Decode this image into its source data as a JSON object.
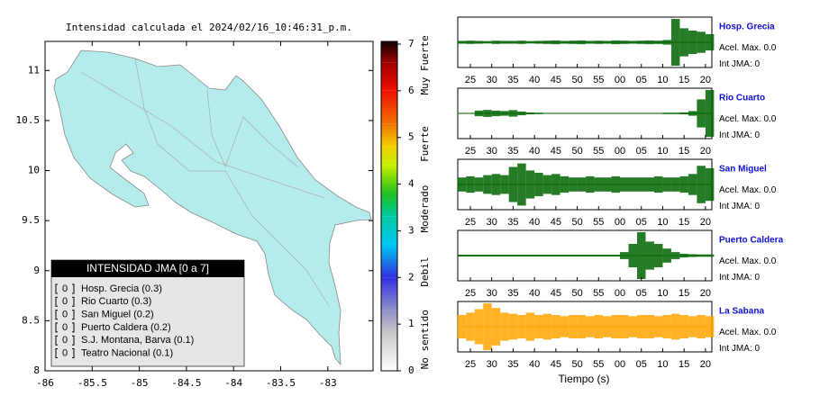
{
  "chart_data": [
    {
      "type": "map",
      "title": "Intensidad calculada el 2024/02/16_10:46:31_p.m.",
      "xlim": [
        -86,
        -82.52
      ],
      "ylim": [
        8,
        11.29
      ],
      "xticks": [
        -86,
        -85.5,
        -85,
        -84.5,
        -84,
        -83.5,
        -83
      ],
      "yticks": [
        8,
        8.5,
        9,
        9.5,
        10,
        10.5,
        11
      ],
      "land_color": "#b4ecec",
      "colorbar": {
        "lim": [
          0,
          7
        ],
        "ticks": [
          0,
          1,
          2,
          3,
          4,
          5,
          6,
          7
        ],
        "stops": [
          {
            "value": 0,
            "color": "#ffffff"
          },
          {
            "value": 0.8,
            "color": "#c8c8c8"
          },
          {
            "value": 1.3,
            "color": "#9090c8"
          },
          {
            "value": 2,
            "color": "#3030e0"
          },
          {
            "value": 2.7,
            "color": "#00c8f0"
          },
          {
            "value": 3.3,
            "color": "#00c8a0"
          },
          {
            "value": 3.8,
            "color": "#20c020"
          },
          {
            "value": 4.4,
            "color": "#c8f000"
          },
          {
            "value": 4.8,
            "color": "#f0d000"
          },
          {
            "value": 5.3,
            "color": "#f07000"
          },
          {
            "value": 6,
            "color": "#f01000"
          },
          {
            "value": 6.6,
            "color": "#a00000"
          },
          {
            "value": 7,
            "color": "#200000"
          }
        ],
        "labels": [
          {
            "value": 6.55,
            "label": "Muy Fuerte"
          },
          {
            "value": 4.86,
            "label": "Fuerte"
          },
          {
            "value": 3.47,
            "label": "Moderado"
          },
          {
            "value": 2.12,
            "label": "Debil"
          },
          {
            "value": 0.67,
            "label": "No sentido"
          }
        ]
      },
      "legend": {
        "title": "INTENSIDAD JMA [0 a 7]",
        "items": [
          {
            "intensity": 0,
            "name": "Hosp. Grecia (0.3)"
          },
          {
            "intensity": 0,
            "name": "Rio Cuarto (0.3)"
          },
          {
            "intensity": 0,
            "name": "San Miguel (0.2)"
          },
          {
            "intensity": 0,
            "name": "Puerto Caldera (0.2)"
          },
          {
            "intensity": 0,
            "name": "S.J. Montana, Barva (0.1)"
          },
          {
            "intensity": 0,
            "name": "Teatro Nacional (0.1)"
          }
        ]
      }
    },
    {
      "type": "waveform",
      "xlabel": "Tiempo (s)",
      "xlim": [
        22.05,
        81.5
      ],
      "xticks": [
        25,
        30,
        35,
        40,
        45,
        50,
        55,
        {
          "value": 60,
          "label": "00"
        },
        {
          "value": 65,
          "label": "05"
        },
        {
          "value": 70,
          "label": "10"
        },
        {
          "value": 75,
          "label": "15"
        },
        {
          "value": 80,
          "label": "20"
        }
      ],
      "x": [
        23,
        25,
        27,
        29,
        31,
        33,
        35,
        37,
        39,
        41,
        43,
        45,
        47,
        49,
        51,
        53,
        55,
        57,
        59,
        61,
        63,
        65,
        67,
        69,
        71,
        73,
        75,
        77,
        79,
        81
      ],
      "series": [
        {
          "name": "Hosp. Grecia",
          "color": "#006400",
          "acel_label": "Acel. Max.",
          "acel": {
            "value": 0,
            "label": "0.0"
          },
          "int_label": "Int JMA:",
          "int": 0,
          "values": [
            0.06,
            0.07,
            0.06,
            0.05,
            0.07,
            0.06,
            0.06,
            0.07,
            0.05,
            0.06,
            0.07,
            0.08,
            0.06,
            0.07,
            0.08,
            0.06,
            0.07,
            0.06,
            0.08,
            0.07,
            0.06,
            0.07,
            0.08,
            0.07,
            0.1,
            1.0,
            0.6,
            0.5,
            0.45,
            0.35
          ]
        },
        {
          "name": "Rio Cuarto",
          "color": "#006400",
          "acel_label": "Acel. Max.",
          "acel": {
            "value": 0,
            "label": "0.0"
          },
          "int_label": "Int JMA:",
          "int": 0,
          "values": [
            0.02,
            0.02,
            0.12,
            0.15,
            0.12,
            0.1,
            0.14,
            0.08,
            0.04,
            0.03,
            0.02,
            0.02,
            0.02,
            0.02,
            0.02,
            0.02,
            0.02,
            0.02,
            0.02,
            0.02,
            0.02,
            0.02,
            0.02,
            0.02,
            0.03,
            0.03,
            0.04,
            0.1,
            0.6,
            1.0
          ]
        },
        {
          "name": "San Miguel",
          "color": "#006400",
          "acel_label": "Acel. Max.",
          "acel": {
            "value": 0,
            "label": "0.0"
          },
          "int_label": "Int JMA:",
          "int": 0,
          "values": [
            0.3,
            0.35,
            0.3,
            0.4,
            0.45,
            0.4,
            0.75,
            0.9,
            0.6,
            0.5,
            0.4,
            0.45,
            0.35,
            0.3,
            0.3,
            0.35,
            0.3,
            0.3,
            0.35,
            0.3,
            0.3,
            0.3,
            0.3,
            0.35,
            0.3,
            0.3,
            0.35,
            0.45,
            0.8,
            0.7
          ]
        },
        {
          "name": "Puerto Caldera",
          "color": "#006400",
          "acel_label": "Acel. Max.",
          "acel": {
            "value": 0,
            "label": "0.0"
          },
          "int_label": "Int JMA:",
          "int": 0,
          "values": [
            0.04,
            0.04,
            0.04,
            0.04,
            0.04,
            0.04,
            0.04,
            0.04,
            0.04,
            0.04,
            0.04,
            0.04,
            0.04,
            0.04,
            0.04,
            0.04,
            0.04,
            0.04,
            0.04,
            0.15,
            0.5,
            1.0,
            0.6,
            0.5,
            0.3,
            0.15,
            0.08,
            0.06,
            0.05,
            0.05
          ]
        },
        {
          "name": "La Sabana",
          "color": "#ffa500",
          "acel_label": "Acel. Max.",
          "acel": {
            "value": 0,
            "label": "0.0"
          },
          "int_label": "Int JMA:",
          "int": 0,
          "values": [
            0.5,
            0.6,
            0.75,
            1.0,
            0.8,
            0.6,
            0.55,
            0.5,
            0.6,
            0.5,
            0.55,
            0.5,
            0.45,
            0.5,
            0.5,
            0.45,
            0.5,
            0.45,
            0.5,
            0.5,
            0.45,
            0.5,
            0.5,
            0.45,
            0.5,
            0.55,
            0.5,
            0.45,
            0.5,
            0.45
          ]
        }
      ]
    }
  ]
}
